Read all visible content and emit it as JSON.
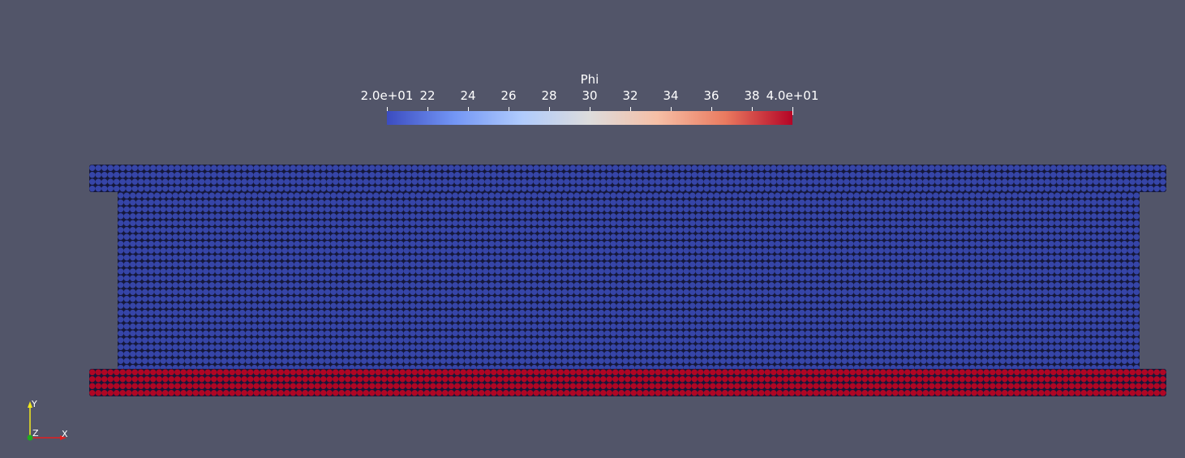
{
  "scalar_bar": {
    "title": "Phi",
    "range": [
      20,
      40
    ],
    "ticks": [
      {
        "value": 20,
        "label": "2.0e+01"
      },
      {
        "value": 22,
        "label": "22"
      },
      {
        "value": 24,
        "label": "24"
      },
      {
        "value": 26,
        "label": "26"
      },
      {
        "value": 28,
        "label": "28"
      },
      {
        "value": 30,
        "label": "30"
      },
      {
        "value": 32,
        "label": "32"
      },
      {
        "value": 34,
        "label": "34"
      },
      {
        "value": 36,
        "label": "36"
      },
      {
        "value": 38,
        "label": "38"
      },
      {
        "value": 40,
        "label": "4.0e+01"
      }
    ],
    "colormap": [
      "#3b4cc0",
      "#7396f5",
      "#b0cbfc",
      "#dddcdc",
      "#f6bfa6",
      "#ea7b60",
      "#b40426"
    ]
  },
  "particles": {
    "top_plate_value": 20,
    "bulk_value": 20,
    "bottom_plate_value": 40,
    "top_plate_color": "#3645a8",
    "bulk_color": "#3645a8",
    "bottom_plate_color": "#b00624",
    "outline_color": "#15183a"
  },
  "orientation_axes": {
    "x_label": "X",
    "y_label": "Y",
    "z_label": "Z",
    "x_color": "#e11f1f",
    "y_color": "#f2e91d",
    "z_color": "#1faa1f"
  }
}
